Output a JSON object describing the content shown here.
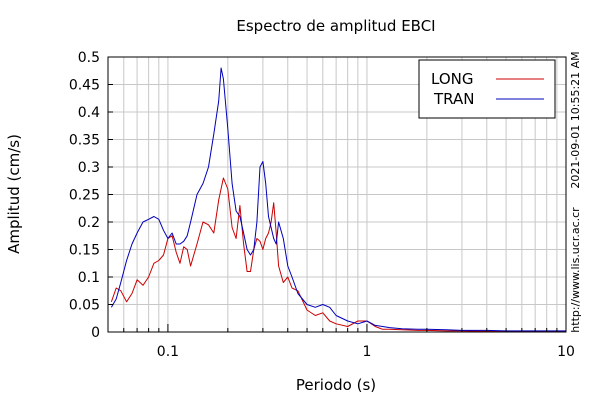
{
  "chart_data": {
    "type": "line",
    "title": "Espectro de amplitud EBCI",
    "xlabel": "Periodo (s)",
    "ylabel": "Amplitud (cm/s)",
    "xscale": "log",
    "xlim": [
      0.05,
      10
    ],
    "ylim": [
      0,
      0.5
    ],
    "grid": true,
    "legend_position": "top-right",
    "y_ticks": [
      "0",
      "0.05",
      "0.1",
      "0.15",
      "0.2",
      "0.25",
      "0.3",
      "0.35",
      "0.4",
      "0.45",
      "0.5"
    ],
    "x_ticks": [
      "0.1",
      "1",
      "10"
    ],
    "annotations": {
      "timestamp": "2021-09-01 10:55:21 AM",
      "url": "http://www.lis.ucr.ac.cr"
    },
    "series": [
      {
        "name": "LONG",
        "color": "#cc0000",
        "x": [
          0.052,
          0.055,
          0.058,
          0.062,
          0.066,
          0.07,
          0.075,
          0.08,
          0.085,
          0.09,
          0.095,
          0.1,
          0.105,
          0.11,
          0.115,
          0.12,
          0.125,
          0.13,
          0.14,
          0.15,
          0.16,
          0.17,
          0.18,
          0.19,
          0.2,
          0.21,
          0.22,
          0.23,
          0.24,
          0.25,
          0.26,
          0.27,
          0.28,
          0.29,
          0.3,
          0.31,
          0.32,
          0.33,
          0.34,
          0.35,
          0.36,
          0.38,
          0.4,
          0.42,
          0.45,
          0.5,
          0.55,
          0.6,
          0.65,
          0.7,
          0.8,
          0.9,
          1.0,
          1.1,
          1.2,
          1.3,
          1.5,
          1.8,
          2.0,
          2.5,
          3.0,
          4.0,
          5.0,
          6.0,
          8.0,
          10.0
        ],
        "y": [
          0.055,
          0.08,
          0.075,
          0.055,
          0.07,
          0.095,
          0.085,
          0.1,
          0.125,
          0.13,
          0.14,
          0.17,
          0.175,
          0.145,
          0.125,
          0.155,
          0.15,
          0.12,
          0.16,
          0.2,
          0.195,
          0.18,
          0.24,
          0.28,
          0.26,
          0.19,
          0.17,
          0.23,
          0.16,
          0.11,
          0.11,
          0.15,
          0.17,
          0.165,
          0.15,
          0.17,
          0.18,
          0.2,
          0.235,
          0.18,
          0.12,
          0.09,
          0.1,
          0.08,
          0.075,
          0.04,
          0.03,
          0.035,
          0.02,
          0.015,
          0.01,
          0.02,
          0.02,
          0.01,
          0.005,
          0.005,
          0.004,
          0.003,
          0.003,
          0.002,
          0.002,
          0.0015,
          0.001,
          0.001,
          0.001,
          0.001
        ]
      },
      {
        "name": "TRAN",
        "color": "#0000bb",
        "x": [
          0.052,
          0.055,
          0.058,
          0.062,
          0.066,
          0.07,
          0.075,
          0.08,
          0.085,
          0.09,
          0.095,
          0.1,
          0.105,
          0.11,
          0.115,
          0.12,
          0.125,
          0.13,
          0.14,
          0.15,
          0.16,
          0.17,
          0.18,
          0.185,
          0.19,
          0.2,
          0.21,
          0.22,
          0.23,
          0.24,
          0.25,
          0.26,
          0.27,
          0.28,
          0.29,
          0.3,
          0.31,
          0.32,
          0.33,
          0.34,
          0.35,
          0.36,
          0.38,
          0.4,
          0.42,
          0.45,
          0.5,
          0.55,
          0.6,
          0.65,
          0.7,
          0.8,
          0.9,
          1.0,
          1.1,
          1.2,
          1.3,
          1.5,
          1.8,
          2.0,
          2.5,
          3.0,
          4.0,
          5.0,
          6.0,
          8.0,
          10.0
        ],
        "y": [
          0.045,
          0.06,
          0.09,
          0.13,
          0.16,
          0.18,
          0.2,
          0.205,
          0.21,
          0.205,
          0.185,
          0.17,
          0.18,
          0.16,
          0.16,
          0.165,
          0.175,
          0.2,
          0.25,
          0.27,
          0.3,
          0.36,
          0.42,
          0.48,
          0.46,
          0.37,
          0.27,
          0.22,
          0.21,
          0.18,
          0.15,
          0.14,
          0.15,
          0.2,
          0.3,
          0.31,
          0.27,
          0.21,
          0.19,
          0.17,
          0.16,
          0.2,
          0.17,
          0.12,
          0.1,
          0.07,
          0.05,
          0.045,
          0.05,
          0.045,
          0.03,
          0.02,
          0.015,
          0.02,
          0.012,
          0.01,
          0.008,
          0.006,
          0.005,
          0.005,
          0.004,
          0.003,
          0.003,
          0.002,
          0.002,
          0.002,
          0.002
        ]
      }
    ]
  }
}
